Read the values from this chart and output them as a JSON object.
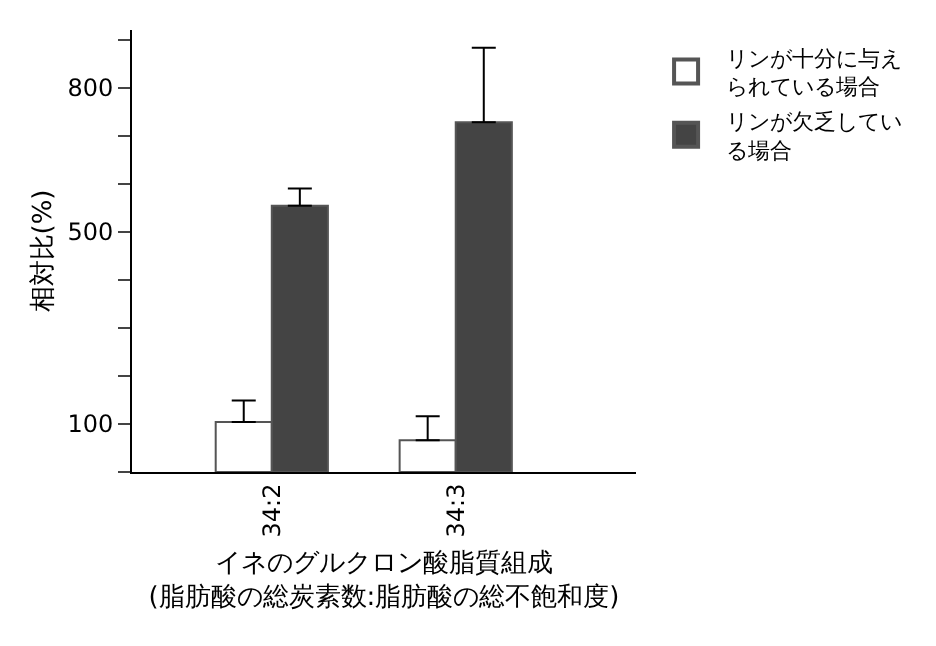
{
  "chart_data": {
    "type": "bar",
    "ylabel": "相対比(%)",
    "xlabel": "イネのグルクロン酸脂質組成\n(脂肪酸の総炭素数:脂肪酸の総不飽和度)",
    "categories": [
      "34:2",
      "34:3"
    ],
    "series": [
      {
        "name": "リンが十分に与えられている場合",
        "color": "#ffffff",
        "values": [
          104,
          66
        ],
        "errors": [
          [
            104,
            149
          ],
          [
            66,
            116
          ]
        ]
      },
      {
        "name": "リンが欠乏している場合",
        "color": "#444444",
        "values": [
          554,
          728
        ],
        "errors": [
          [
            554,
            590
          ],
          [
            728,
            883
          ]
        ]
      }
    ],
    "ylim": [
      0,
      920
    ],
    "yticks": [
      {
        "value": 0,
        "label": null
      },
      100,
      {
        "value": 200,
        "label": null
      },
      {
        "value": 300,
        "label": null
      },
      {
        "value": 400,
        "label": null
      },
      500,
      {
        "value": 600,
        "label": null
      },
      {
        "value": 700,
        "label": null
      },
      800,
      {
        "value": 900,
        "label": null
      }
    ],
    "legend": "top right"
  }
}
